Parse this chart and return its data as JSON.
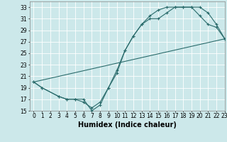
{
  "xlabel": "Humidex (Indice chaleur)",
  "xlim": [
    -0.5,
    23
  ],
  "ylim": [
    15,
    34
  ],
  "xticks": [
    0,
    1,
    2,
    3,
    4,
    5,
    6,
    7,
    8,
    9,
    10,
    11,
    12,
    13,
    14,
    15,
    16,
    17,
    18,
    19,
    20,
    21,
    22,
    23
  ],
  "yticks": [
    15,
    17,
    19,
    21,
    23,
    25,
    27,
    29,
    31,
    33
  ],
  "bg_color": "#cce8ea",
  "grid_color": "#b0d4d8",
  "line_color": "#2a6b6b",
  "line1_x": [
    0,
    1,
    3,
    4,
    5,
    6,
    7,
    8,
    9,
    10,
    11,
    12,
    13,
    14,
    15,
    16,
    17,
    18,
    19,
    20,
    21,
    22,
    23
  ],
  "line1_y": [
    20,
    19,
    17.5,
    17,
    17,
    16.5,
    15.5,
    16.5,
    19,
    22,
    25.5,
    28,
    30,
    31,
    31,
    32,
    33,
    33,
    33,
    33,
    32,
    30,
    27.5
  ],
  "line2_x": [
    0,
    1,
    3,
    4,
    5,
    6,
    7,
    8,
    9,
    10,
    11,
    12,
    13,
    14,
    15,
    16,
    17,
    18,
    19,
    20,
    21,
    22,
    23
  ],
  "line2_y": [
    20,
    19,
    17.5,
    17,
    17,
    17,
    15,
    16,
    19,
    21.5,
    25.5,
    28,
    30,
    31.5,
    32.5,
    33,
    33,
    33,
    33,
    31.5,
    30,
    29.5,
    27.5
  ],
  "line3_x": [
    0,
    23
  ],
  "line3_y": [
    20,
    27.5
  ],
  "marker": "+",
  "marker_size": 3.5,
  "linewidth": 0.8,
  "xlabel_fontsize": 7,
  "tick_fontsize": 5.5
}
